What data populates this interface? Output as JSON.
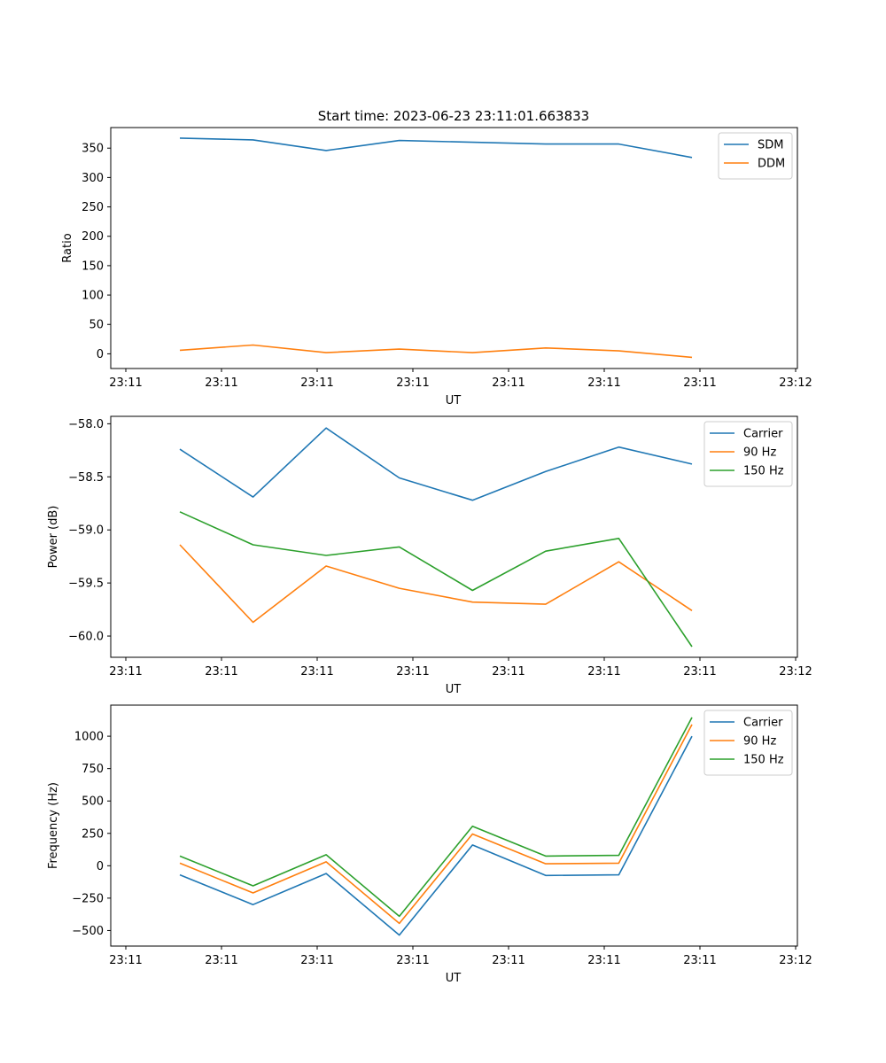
{
  "figure": {
    "title": "Start time: 2023-06-23 23:11:01.663833"
  },
  "chart_data": [
    {
      "type": "line",
      "xlabel": "UT",
      "ylabel": "Ratio",
      "x_tick_labels": [
        "23:11",
        "23:11",
        "23:11",
        "23:11",
        "23:11",
        "23:11",
        "23:11",
        "23:12"
      ],
      "yticks": [
        0,
        50,
        100,
        150,
        200,
        250,
        300,
        350
      ],
      "ylim": [
        -25,
        385
      ],
      "legend_position": "upper right",
      "series": [
        {
          "name": "SDM",
          "color": "#1f77b4",
          "values": [
            367,
            364,
            346,
            363,
            360,
            357,
            357,
            334
          ]
        },
        {
          "name": "DDM",
          "color": "#ff7f0e",
          "values": [
            6,
            15,
            2,
            8,
            2,
            10,
            5,
            -6
          ]
        }
      ]
    },
    {
      "type": "line",
      "xlabel": "UT",
      "ylabel": "Power (dB)",
      "x_tick_labels": [
        "23:11",
        "23:11",
        "23:11",
        "23:11",
        "23:11",
        "23:11",
        "23:11",
        "23:12"
      ],
      "yticks": [
        -60.0,
        -59.5,
        -59.0,
        -58.5,
        -58.0
      ],
      "ylim": [
        -60.2,
        -57.93
      ],
      "legend_position": "upper right",
      "series": [
        {
          "name": "Carrier",
          "color": "#1f77b4",
          "values": [
            -58.24,
            -58.69,
            -58.04,
            -58.51,
            -58.72,
            -58.45,
            -58.22,
            -58.38
          ]
        },
        {
          "name": "90 Hz",
          "color": "#ff7f0e",
          "values": [
            -59.14,
            -59.87,
            -59.34,
            -59.55,
            -59.68,
            -59.7,
            -59.3,
            -59.76
          ]
        },
        {
          "name": "150 Hz",
          "color": "#2ca02c",
          "values": [
            -58.83,
            -59.14,
            -59.24,
            -59.16,
            -59.57,
            -59.2,
            -59.08,
            -60.1
          ]
        }
      ]
    },
    {
      "type": "line",
      "xlabel": "UT",
      "ylabel": "Frequency (Hz)",
      "x_tick_labels": [
        "23:11",
        "23:11",
        "23:11",
        "23:11",
        "23:11",
        "23:11",
        "23:11",
        "23:12"
      ],
      "yticks": [
        -500,
        -250,
        0,
        250,
        500,
        750,
        1000
      ],
      "ylim": [
        -620,
        1240
      ],
      "legend_position": "upper right",
      "series": [
        {
          "name": "Carrier",
          "color": "#1f77b4",
          "values": [
            -70,
            -300,
            -60,
            -535,
            160,
            -75,
            -70,
            1000
          ]
        },
        {
          "name": "90 Hz",
          "color": "#ff7f0e",
          "values": [
            20,
            -210,
            30,
            -445,
            245,
            15,
            20,
            1090
          ]
        },
        {
          "name": "150 Hz",
          "color": "#2ca02c",
          "values": [
            75,
            -155,
            85,
            -390,
            305,
            75,
            80,
            1145
          ]
        }
      ]
    }
  ]
}
